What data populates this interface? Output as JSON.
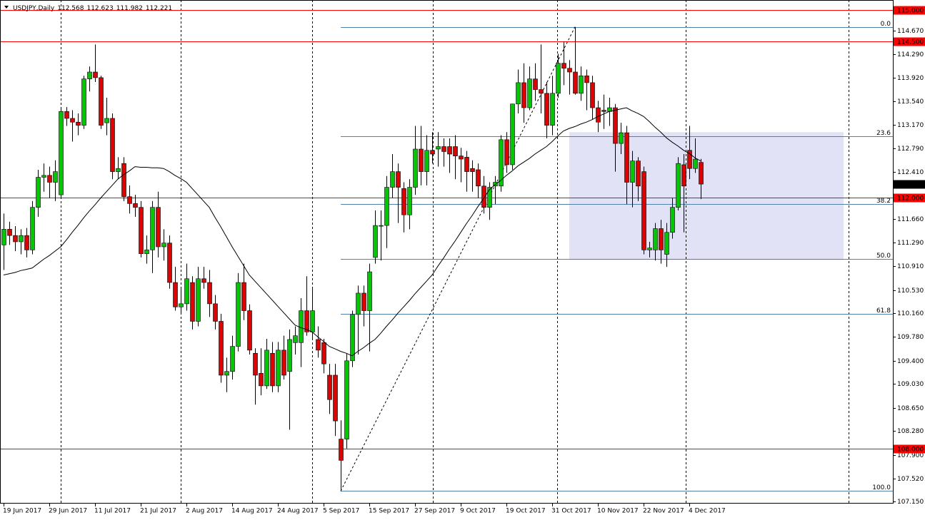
{
  "chart_data": {
    "type": "candlestick",
    "title": "USDJPY,Daily",
    "up_color": "#00c800",
    "down_color": "#e00000",
    "categories": [
      "19 Jun 2017",
      null,
      null,
      null,
      null,
      null,
      null,
      null,
      "29 Jun 2017",
      null,
      null,
      null,
      null,
      null,
      null,
      null,
      "11 Jul 2017",
      null,
      null,
      null,
      null,
      null,
      null,
      null,
      "21 Jul 2017",
      null,
      null,
      null,
      null,
      null,
      null,
      null,
      "2 Aug 2017",
      null,
      null,
      null,
      null,
      null,
      null,
      null,
      "14 Aug 2017",
      null,
      null,
      null,
      null,
      null,
      null,
      null,
      "24 Aug 2017",
      null,
      null,
      null,
      null,
      null,
      null,
      null,
      "5 Sep 2017",
      null,
      null,
      null,
      null,
      null,
      null,
      null,
      "15 Sep 2017",
      null,
      null,
      null,
      null,
      null,
      null,
      null,
      "27 Sep 2017",
      null,
      null,
      null,
      null,
      null,
      null,
      null,
      "9 Oct 2017",
      null,
      null,
      null,
      null,
      null,
      null,
      null,
      "19 Oct 2017",
      null,
      null,
      null,
      null,
      null,
      null,
      null,
      "31 Oct 2017",
      null,
      null,
      null,
      null,
      null,
      null,
      null,
      "10 Nov 2017",
      null,
      null,
      null,
      null,
      null,
      null,
      null,
      "22 Nov 2017",
      null,
      null,
      null,
      null,
      null,
      null,
      null,
      "4 Dec 2017",
      null,
      null
    ],
    "open": [
      111.25,
      111.5,
      111.4,
      111.3,
      111.4,
      111.17,
      111.85,
      112.33,
      112.36,
      112.25,
      112.05,
      113.38,
      113.27,
      113.21,
      113.16,
      113.9,
      114.01,
      113.92,
      113.2,
      113.27,
      112.42,
      112.55,
      112.02,
      111.91,
      111.85,
      111.11,
      111.17,
      111.85,
      111.22,
      111.28,
      110.65,
      110.26,
      110.31,
      110.65,
      110.03,
      110.71,
      110.65,
      110.31,
      110.03,
      109.17,
      109.23,
      109.63,
      110.65,
      110.2,
      109.52,
      109.2,
      109.0,
      109.52,
      109.0,
      109.57,
      109.23,
      109.69,
      109.69,
      110.2,
      109.86,
      109.74,
      109.69,
      109.17,
      109.17,
      108.15,
      108.15,
      109.4,
      110.14,
      110.48,
      110.2,
      111.05,
      111.56,
      111.56,
      112.17,
      112.42,
      112.15,
      111.73,
      112.17,
      112.78,
      112.42,
      112.76,
      112.78,
      112.82,
      112.82,
      112.82,
      112.67,
      112.65,
      112.47,
      112.45,
      112.19,
      111.85,
      112.19,
      112.19,
      112.93,
      112.53,
      113.5,
      113.84,
      113.44,
      113.9,
      113.73,
      113.67,
      113.16,
      113.67,
      114.15,
      114.07,
      114.01,
      113.67,
      113.95,
      113.84,
      113.44,
      113.4,
      113.38,
      113.44,
      112.87,
      113.04,
      112.25,
      112.59,
      112.42,
      111.17,
      111.17,
      111.51,
      111.1,
      111.45,
      111.85,
      112.53,
      112.76,
      112.47,
      112.568
    ],
    "high": [
      111.75,
      111.62,
      111.55,
      111.5,
      111.52,
      111.95,
      112.45,
      112.55,
      112.5,
      112.6,
      113.45,
      113.45,
      113.4,
      113.35,
      113.95,
      114.1,
      114.45,
      113.95,
      113.6,
      113.35,
      112.65,
      112.65,
      112.2,
      112.05,
      111.95,
      111.4,
      111.95,
      112.1,
      111.5,
      111.4,
      110.9,
      110.55,
      110.95,
      110.75,
      110.9,
      110.9,
      110.85,
      110.45,
      110.15,
      109.45,
      109.8,
      110.8,
      110.95,
      110.3,
      109.6,
      109.6,
      109.75,
      109.7,
      109.7,
      109.8,
      109.9,
      109.95,
      110.4,
      110.75,
      110.55,
      109.95,
      109.75,
      109.35,
      109.35,
      108.45,
      109.52,
      110.2,
      110.6,
      110.6,
      110.95,
      111.8,
      111.8,
      112.35,
      112.7,
      112.55,
      112.25,
      112.3,
      113.15,
      113.15,
      113.0,
      113.05,
      113.05,
      112.95,
      112.95,
      113.0,
      112.8,
      112.75,
      112.6,
      112.55,
      112.35,
      112.25,
      112.35,
      113.0,
      113.05,
      113.5,
      114.05,
      114.15,
      114.1,
      114.15,
      114.45,
      113.85,
      113.95,
      114.3,
      114.5,
      114.2,
      114.73,
      114.1,
      114.05,
      113.95,
      113.55,
      113.65,
      113.6,
      113.5,
      113.2,
      113.15,
      112.75,
      112.65,
      112.5,
      111.3,
      111.6,
      111.65,
      111.6,
      112.0,
      112.65,
      112.7,
      113.15,
      112.95,
      112.623
    ],
    "low": [
      110.85,
      111.25,
      111.15,
      111.1,
      111.05,
      111.1,
      111.7,
      112.1,
      112.0,
      111.95,
      112.0,
      113.15,
      112.9,
      113.0,
      113.1,
      113.7,
      113.85,
      113.1,
      113.0,
      112.3,
      112.3,
      111.95,
      111.75,
      111.7,
      111.05,
      110.95,
      110.8,
      111.05,
      111.0,
      110.55,
      110.2,
      110.15,
      110.2,
      109.9,
      109.95,
      110.55,
      110.1,
      109.9,
      109.05,
      108.9,
      109.1,
      109.55,
      110.05,
      109.5,
      108.7,
      108.85,
      108.95,
      108.9,
      108.9,
      109.1,
      108.3,
      109.5,
      109.3,
      109.8,
      109.75,
      109.45,
      109.2,
      108.55,
      108.2,
      107.32,
      108.0,
      109.3,
      109.5,
      109.95,
      109.55,
      110.95,
      111.0,
      111.2,
      112.0,
      111.6,
      111.45,
      111.5,
      112.05,
      112.2,
      112.2,
      112.55,
      112.5,
      112.5,
      112.4,
      112.3,
      112.25,
      112.1,
      112.1,
      112.0,
      111.75,
      111.65,
      111.9,
      112.1,
      112.4,
      112.45,
      113.35,
      113.2,
      113.4,
      113.55,
      113.35,
      112.95,
      113.0,
      113.6,
      113.8,
      113.65,
      113.65,
      113.55,
      113.4,
      113.25,
      113.05,
      113.1,
      113.15,
      112.42,
      112.7,
      111.9,
      111.85,
      111.95,
      111.1,
      111.05,
      111.0,
      110.95,
      110.9,
      111.35,
      111.8,
      111.45,
      112.3,
      112.4,
      111.982
    ],
    "close": [
      111.5,
      111.4,
      111.3,
      111.4,
      111.17,
      111.85,
      112.33,
      112.36,
      112.25,
      112.42,
      113.38,
      113.27,
      113.21,
      113.16,
      113.9,
      114.01,
      113.92,
      113.16,
      113.27,
      112.42,
      112.47,
      112.02,
      111.91,
      111.85,
      111.11,
      111.17,
      111.85,
      111.22,
      111.28,
      110.65,
      110.26,
      110.31,
      110.71,
      110.03,
      110.71,
      110.65,
      110.31,
      110.03,
      109.17,
      109.23,
      109.63,
      110.65,
      110.2,
      109.57,
      109.17,
      109.0,
      109.57,
      109.0,
      109.57,
      109.17,
      109.74,
      109.8,
      110.2,
      109.86,
      110.2,
      109.57,
      109.35,
      108.78,
      108.44,
      107.81,
      109.4,
      110.14,
      110.48,
      110.2,
      110.82,
      111.56,
      111.56,
      112.17,
      112.42,
      112.17,
      111.73,
      112.17,
      112.78,
      112.42,
      112.76,
      112.7,
      112.82,
      112.74,
      112.7,
      112.67,
      112.62,
      112.42,
      112.42,
      112.19,
      111.85,
      112.17,
      112.25,
      112.93,
      112.53,
      113.5,
      113.84,
      113.44,
      113.9,
      113.73,
      113.67,
      113.16,
      113.67,
      114.15,
      114.07,
      114.01,
      113.67,
      113.95,
      113.84,
      113.44,
      113.21,
      113.38,
      113.44,
      112.87,
      113.04,
      112.25,
      112.59,
      112.19,
      111.17,
      111.2,
      111.51,
      111.17,
      111.45,
      111.85,
      112.55,
      112.19,
      112.47,
      112.62,
      112.221
    ],
    "moving_average": {
      "color": "#000000",
      "values": [
        110.77,
        110.79,
        110.81,
        110.84,
        110.86,
        110.88,
        110.95,
        111.02,
        111.08,
        111.15,
        111.22,
        111.33,
        111.45,
        111.56,
        111.68,
        111.79,
        111.89,
        112.0,
        112.1,
        112.2,
        112.3,
        112.37,
        112.43,
        112.5,
        112.49,
        112.49,
        112.48,
        112.48,
        112.47,
        112.42,
        112.36,
        112.31,
        112.25,
        112.15,
        112.05,
        111.95,
        111.85,
        111.69,
        111.54,
        111.38,
        111.22,
        111.07,
        110.92,
        110.77,
        110.67,
        110.57,
        110.47,
        110.37,
        110.27,
        110.17,
        110.07,
        109.97,
        109.93,
        109.9,
        109.86,
        109.78,
        109.71,
        109.63,
        109.59,
        109.55,
        109.52,
        109.48,
        109.55,
        109.61,
        109.68,
        109.74,
        109.84,
        109.95,
        110.05,
        110.16,
        110.26,
        110.36,
        110.47,
        110.57,
        110.67,
        110.77,
        110.91,
        111.04,
        111.18,
        111.31,
        111.45,
        111.59,
        111.72,
        111.86,
        111.99,
        112.13,
        112.21,
        112.28,
        112.36,
        112.43,
        112.51,
        112.57,
        112.63,
        112.7,
        112.76,
        112.82,
        112.9,
        112.99,
        113.07,
        113.11,
        113.14,
        113.18,
        113.21,
        113.25,
        113.3,
        113.34,
        113.38,
        113.4,
        113.42,
        113.44,
        113.39,
        113.35,
        113.3,
        113.22,
        113.13,
        113.05,
        112.96,
        112.89,
        112.83,
        112.76,
        112.71,
        112.64,
        112.59
      ]
    },
    "ylim": [
      107.12,
      115.16
    ],
    "yticks": [
      {
        "value": 114.67,
        "label": "114.670"
      },
      {
        "value": 114.29,
        "label": "114.290"
      },
      {
        "value": 113.92,
        "label": "113.920"
      },
      {
        "value": 113.54,
        "label": "113.540"
      },
      {
        "value": 113.17,
        "label": "113.170"
      },
      {
        "value": 112.79,
        "label": "112.790"
      },
      {
        "value": 112.41,
        "label": "112.410"
      },
      {
        "value": 111.66,
        "label": "111.660"
      },
      {
        "value": 111.29,
        "label": "111.290"
      },
      {
        "value": 110.91,
        "label": "110.910"
      },
      {
        "value": 110.53,
        "label": "110.530"
      },
      {
        "value": 110.16,
        "label": "110.160"
      },
      {
        "value": 109.78,
        "label": "109.780"
      },
      {
        "value": 109.4,
        "label": "109.400"
      },
      {
        "value": 109.03,
        "label": "109.030"
      },
      {
        "value": 108.65,
        "label": "108.650"
      },
      {
        "value": 108.28,
        "label": "108.280"
      },
      {
        "value": 107.9,
        "label": "107.900"
      },
      {
        "value": 107.52,
        "label": "107.520"
      },
      {
        "value": 107.15,
        "label": "107.150"
      }
    ],
    "levels": {
      "color": "#ff0000",
      "items": [
        {
          "value": 115,
          "label": "115.000"
        },
        {
          "value": 114.5,
          "label": "114.500"
        },
        {
          "value": 112,
          "label": "112.000"
        },
        {
          "value": 108,
          "label": "108.000"
        }
      ]
    },
    "fibonacci": {
      "color": "#4f81ad",
      "levels": [
        {
          "label": "0.0",
          "value": 114.73
        },
        {
          "label": "23.6",
          "value": 112.98
        },
        {
          "label": "38.2",
          "value": 111.9
        },
        {
          "label": "50.0",
          "value": 111.025
        },
        {
          "label": "61.8",
          "value": 110.15
        },
        {
          "label": "100.0",
          "value": 107.32
        }
      ]
    },
    "rectangle": {
      "top": 113.05,
      "bottom": 111.01,
      "color": "#e2e2f7"
    }
  }
}
